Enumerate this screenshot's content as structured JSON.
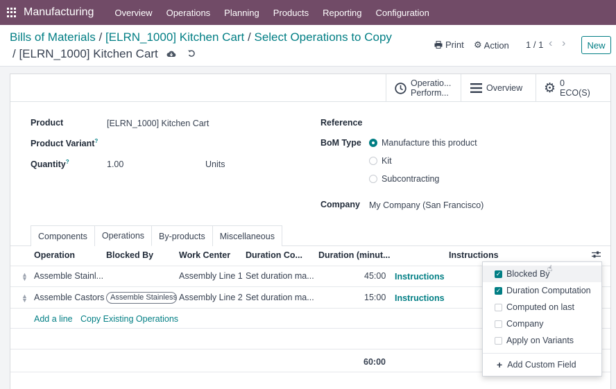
{
  "topbar": {
    "app_name": "Manufacturing",
    "menu": [
      "Overview",
      "Operations",
      "Planning",
      "Products",
      "Reporting",
      "Configuration"
    ]
  },
  "breadcrumb": {
    "items": [
      "Bills of Materials",
      "[ELRN_1000] Kitchen Cart",
      "Select Operations to Copy"
    ],
    "current": "[ELRN_1000] Kitchen Cart"
  },
  "controls": {
    "print": "Print",
    "action": "Action",
    "pager": "1 / 1",
    "new": "New"
  },
  "smart_buttons": {
    "op_line1": "Operatio...",
    "op_line2": "Perform...",
    "overview": "Overview",
    "eco_count": "0",
    "eco_label": "ECO(S)"
  },
  "form": {
    "product_label": "Product",
    "product_value": "[ELRN_1000] Kitchen Cart",
    "variant_label": "Product Variant",
    "quantity_label": "Quantity",
    "quantity_value": "1.00",
    "uom": "Units",
    "reference_label": "Reference",
    "bom_type_label": "BoM Type",
    "bom_options": [
      "Manufacture this product",
      "Kit",
      "Subcontracting"
    ],
    "company_label": "Company",
    "company_value": "My Company (San Francisco)",
    "help": "?"
  },
  "tabs": [
    "Components",
    "Operations",
    "By-products",
    "Miscellaneous"
  ],
  "table": {
    "headers": [
      "Operation",
      "Blocked By",
      "Work Center",
      "Duration Co...",
      "Duration (minut...",
      "Instructions"
    ],
    "rows": [
      {
        "operation": "Assemble Stainl...",
        "blocked_by": "",
        "work_center": "Assembly Line 1",
        "duration_comp": "Set duration ma...",
        "duration": "45:00",
        "instructions": "Instructions"
      },
      {
        "operation": "Assemble Castors",
        "blocked_by": "Assemble Stainless",
        "work_center": "Assembly Line 2",
        "duration_comp": "Set duration ma...",
        "duration": "15:00",
        "instructions": "Instructions"
      }
    ],
    "add_line": "Add a line",
    "copy_ops": "Copy Existing Operations",
    "total": "60:00"
  },
  "column_dropdown": {
    "items": [
      {
        "label": "Blocked By",
        "checked": true
      },
      {
        "label": "Duration Computation",
        "checked": true
      },
      {
        "label": "Computed on last",
        "checked": false
      },
      {
        "label": "Company",
        "checked": false
      },
      {
        "label": "Apply on Variants",
        "checked": false
      }
    ],
    "add_field": "Add Custom Field"
  },
  "colors": {
    "brand": "#714b67",
    "accent": "#017e84"
  }
}
